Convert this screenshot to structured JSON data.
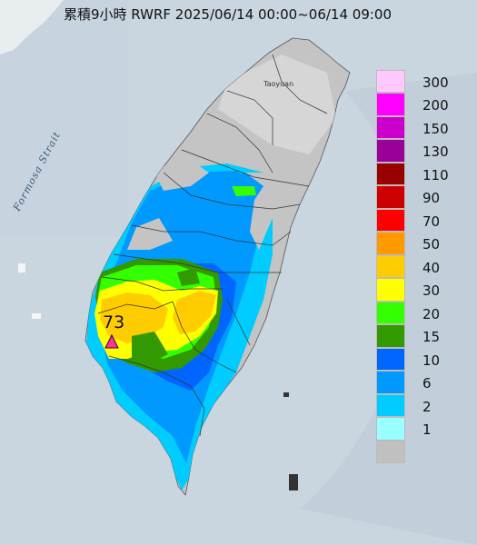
{
  "title": "累積9小時 RWRF 2025/06/14 00:00~06/14 09:00",
  "map_labels": {
    "strait": "Formosa Strait",
    "city": "Taoyuan"
  },
  "max_value": "73",
  "legend": [
    {
      "label": "300",
      "color": "#ffc8ff"
    },
    {
      "label": "200",
      "color": "#ff00ff"
    },
    {
      "label": "150",
      "color": "#cc00cc"
    },
    {
      "label": "130",
      "color": "#990099"
    },
    {
      "label": "110",
      "color": "#990000"
    },
    {
      "label": "90",
      "color": "#cc0000"
    },
    {
      "label": "70",
      "color": "#ff0000"
    },
    {
      "label": "50",
      "color": "#ff9900"
    },
    {
      "label": "40",
      "color": "#ffcc00"
    },
    {
      "label": "30",
      "color": "#ffff00"
    },
    {
      "label": "20",
      "color": "#33ff00"
    },
    {
      "label": "15",
      "color": "#339900"
    },
    {
      "label": "10",
      "color": "#0066ff"
    },
    {
      "label": "6",
      "color": "#0099ff"
    },
    {
      "label": "2",
      "color": "#00ccff"
    },
    {
      "label": "1",
      "color": "#99ffff"
    },
    {
      "label": "",
      "color": "#c0c0c0"
    }
  ]
}
